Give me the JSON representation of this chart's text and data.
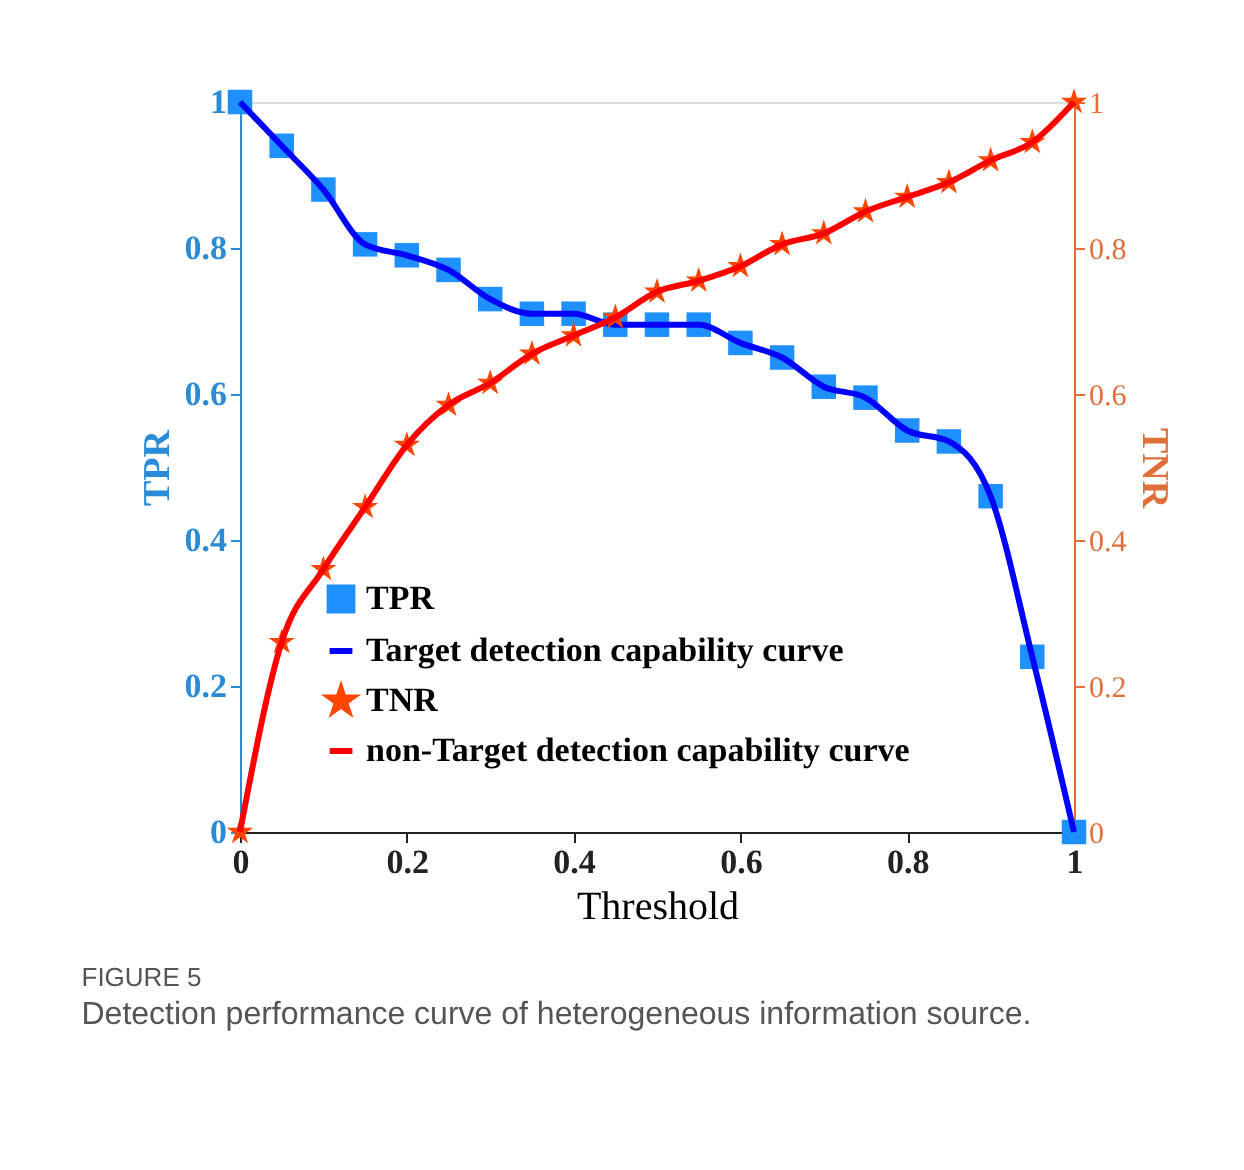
{
  "chart_data": {
    "type": "line",
    "title": "FIGURE 5",
    "subtitle": "Detection performance curve of heterogeneous information source.",
    "xlabel": "Threshold",
    "ylabel": "TPR",
    "y2label": "TNR",
    "x": [
      0,
      0.05,
      0.1,
      0.15,
      0.2,
      0.25,
      0.3,
      0.35,
      0.4,
      0.45,
      0.5,
      0.55,
      0.6,
      0.65,
      0.7,
      0.75,
      0.8,
      0.85,
      0.9,
      0.95,
      1
    ],
    "series": [
      {
        "name": "TPR",
        "type": "scatter",
        "marker": "square",
        "color": "#1e90ff",
        "values": [
          1,
          0.94,
          0.88,
          0.805,
          0.79,
          0.77,
          0.73,
          0.71,
          0.71,
          0.695,
          0.695,
          0.695,
          0.67,
          0.65,
          0.61,
          0.595,
          0.55,
          0.535,
          0.46,
          0.24,
          0
        ]
      },
      {
        "name": "Target detection capability curve",
        "type": "line",
        "marker": "none",
        "color": "#0000ff",
        "values": [
          1,
          0.94,
          0.88,
          0.805,
          0.79,
          0.77,
          0.73,
          0.71,
          0.71,
          0.695,
          0.695,
          0.695,
          0.67,
          0.65,
          0.61,
          0.595,
          0.55,
          0.535,
          0.46,
          0.24,
          0
        ]
      },
      {
        "name": "TNR",
        "type": "scatter",
        "marker": "star",
        "color": "#ff4500",
        "axis": "y2",
        "values": [
          0,
          0.26,
          0.36,
          0.445,
          0.53,
          0.585,
          0.615,
          0.655,
          0.68,
          0.705,
          0.74,
          0.755,
          0.775,
          0.805,
          0.82,
          0.85,
          0.87,
          0.89,
          0.92,
          0.945,
          1
        ]
      },
      {
        "name": "non-Target detection capability curve",
        "type": "line",
        "marker": "none",
        "color": "#ff0000",
        "axis": "y2",
        "values": [
          0,
          0.26,
          0.36,
          0.445,
          0.53,
          0.585,
          0.615,
          0.655,
          0.68,
          0.705,
          0.74,
          0.755,
          0.775,
          0.805,
          0.82,
          0.85,
          0.87,
          0.89,
          0.92,
          0.945,
          1
        ]
      }
    ],
    "xlim": [
      0,
      1
    ],
    "xticks": [
      0,
      0.2,
      0.4,
      0.6,
      0.8,
      1
    ],
    "ylim": [
      0,
      1
    ],
    "yticks": [
      0,
      0.2,
      0.4,
      0.6,
      0.8,
      1
    ],
    "y2lim": [
      0,
      1
    ],
    "y2ticks": [
      0,
      0.2,
      0.4,
      0.6,
      0.8,
      1
    ],
    "legend": "bottom",
    "grid": false
  }
}
